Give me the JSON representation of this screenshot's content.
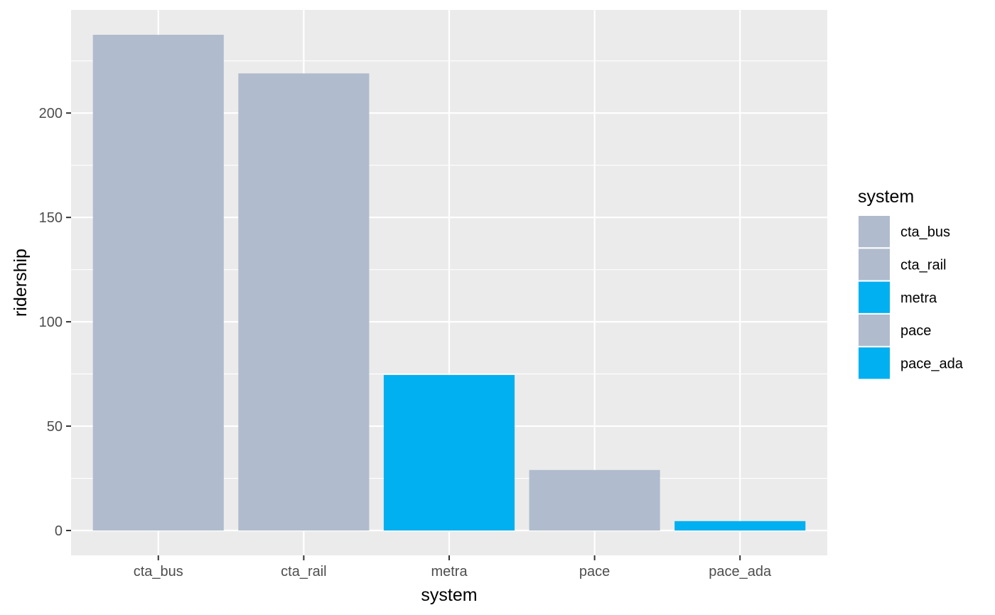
{
  "colors": {
    "panel_background": "#EBEBEB",
    "grid": "#FFFFFF",
    "tick": "#333333",
    "grey_fill": "#B0BCCD",
    "blue_fill": "#00B0F0"
  },
  "chart_data": {
    "type": "bar",
    "xlabel": "system",
    "ylabel": "ridership",
    "categories": [
      "cta_bus",
      "cta_rail",
      "metra",
      "pace",
      "pace_ada"
    ],
    "values": [
      237.5,
      219,
      74.5,
      29,
      4.5
    ],
    "fill_colors": [
      "#B0BCCD",
      "#B0BCCD",
      "#00B0F0",
      "#B0BCCD",
      "#00B0F0"
    ],
    "ylim": [
      -11.9,
      249.4
    ],
    "y_ticks": [
      0,
      50,
      100,
      150,
      200
    ],
    "y_tick_labels": [
      "0",
      "50",
      "100",
      "150",
      "200"
    ],
    "grid": true,
    "legend": {
      "title": "system",
      "placement": "right",
      "items": [
        {
          "label": "cta_bus",
          "color": "#B0BCCD"
        },
        {
          "label": "cta_rail",
          "color": "#B0BCCD"
        },
        {
          "label": "metra",
          "color": "#00B0F0"
        },
        {
          "label": "pace",
          "color": "#B0BCCD"
        },
        {
          "label": "pace_ada",
          "color": "#00B0F0"
        }
      ]
    }
  }
}
